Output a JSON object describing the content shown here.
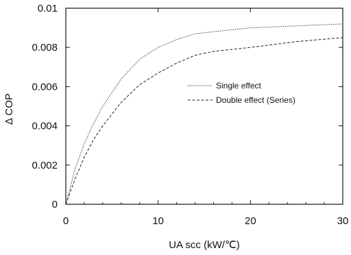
{
  "chart_data": {
    "type": "line",
    "title": "",
    "xlabel": "UA scc (kW/℃)",
    "ylabel": "Δ COP",
    "xlim": [
      0,
      30
    ],
    "ylim": [
      0,
      0.01
    ],
    "x_ticks": [
      0,
      10,
      20,
      30
    ],
    "x_tick_labels": [
      "0",
      "10",
      "20",
      "30"
    ],
    "y_ticks": [
      0,
      0.002,
      0.004,
      0.006,
      0.008,
      0.01
    ],
    "y_tick_labels": [
      "0",
      "0.002",
      "0.004",
      "0.006",
      "0.008",
      "0.01"
    ],
    "grid": false,
    "legend_position": "center-right",
    "series": [
      {
        "name": "Single effect",
        "line_style": "dotted",
        "color": "#222222",
        "x": [
          0,
          1,
          2,
          3,
          4,
          5,
          6,
          8,
          10,
          12,
          14,
          16,
          18,
          20,
          25,
          30
        ],
        "y": [
          0,
          0.0018,
          0.0031,
          0.0041,
          0.005,
          0.0057,
          0.0064,
          0.0074,
          0.008,
          0.0084,
          0.0087,
          0.0088,
          0.0089,
          0.009,
          0.0091,
          0.0092
        ]
      },
      {
        "name": "Double effect (Series)",
        "line_style": "dashed",
        "color": "#222222",
        "x": [
          0,
          1,
          2,
          3,
          4,
          5,
          6,
          8,
          10,
          12,
          14,
          16,
          18,
          20,
          25,
          30
        ],
        "y": [
          0,
          0.0013,
          0.0024,
          0.0033,
          0.004,
          0.0046,
          0.0052,
          0.0061,
          0.0067,
          0.0072,
          0.0076,
          0.0078,
          0.0079,
          0.008,
          0.0083,
          0.0085
        ]
      }
    ]
  }
}
